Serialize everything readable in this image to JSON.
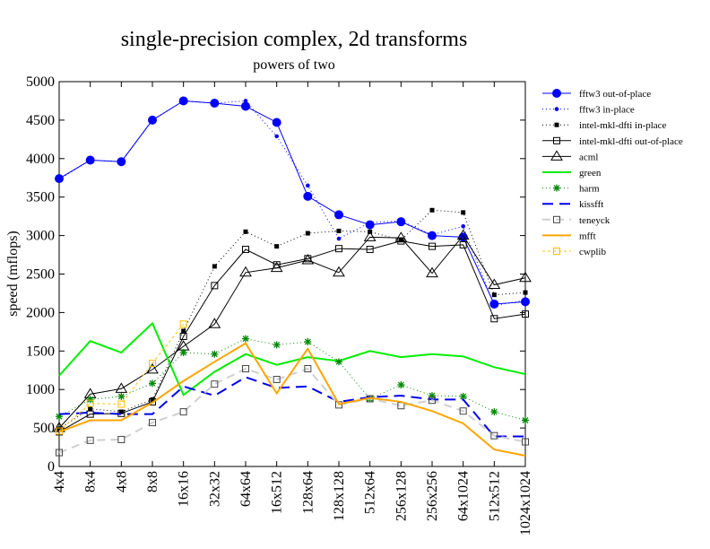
{
  "chart_data": {
    "type": "line",
    "title": "single-precision complex, 2d transforms",
    "subtitle": "powers of two",
    "xlabel": "",
    "ylabel": "speed (mflops)",
    "ylim": [
      0,
      5000
    ],
    "yticks": [
      0,
      500,
      1000,
      1500,
      2000,
      2500,
      3000,
      3500,
      4000,
      4500,
      5000
    ],
    "legend_position": "right",
    "grid": false,
    "categories": [
      "4x4",
      "8x4",
      "4x8",
      "8x8",
      "16x16",
      "32x32",
      "64x64",
      "16x512",
      "128x64",
      "128x128",
      "512x64",
      "256x128",
      "256x256",
      "64x1024",
      "512x512",
      "1024x1024"
    ],
    "series": [
      {
        "name": "fftw3 out-of-place",
        "color": "#0000ff",
        "dash": "",
        "width": 1,
        "marker": "circle-filled",
        "values": [
          3740,
          3980,
          3960,
          4500,
          4750,
          4720,
          4680,
          4470,
          3510,
          3270,
          3140,
          3180,
          3000,
          2980,
          2110,
          2140
        ]
      },
      {
        "name": "fftw3 in-place",
        "color": "#0000ff",
        "dash": "1 3",
        "width": 1,
        "marker": "dot",
        "values": [
          3730,
          3980,
          3960,
          4500,
          4750,
          4720,
          4750,
          4290,
          3650,
          2960,
          3170,
          3190,
          3010,
          3120,
          2090,
          2160
        ]
      },
      {
        "name": "intel-mkl-dfti in-place",
        "color": "#000000",
        "dash": "1 3",
        "width": 1,
        "marker": "square-filled",
        "values": [
          490,
          750,
          710,
          870,
          1760,
          2600,
          3050,
          2860,
          3030,
          3060,
          3050,
          2940,
          3330,
          3300,
          2230,
          2260
        ]
      },
      {
        "name": "intel-mkl-dfti out-of-place",
        "color": "#000000",
        "dash": "",
        "width": 1,
        "marker": "square-open",
        "values": [
          450,
          680,
          690,
          840,
          1690,
          2350,
          2820,
          2620,
          2700,
          2830,
          2820,
          2930,
          2860,
          2880,
          1920,
          1980
        ]
      },
      {
        "name": "acml",
        "color": "#000000",
        "dash": "",
        "width": 1,
        "marker": "triangle-open",
        "values": [
          500,
          940,
          1010,
          1260,
          1560,
          1850,
          2520,
          2580,
          2680,
          2520,
          2980,
          2970,
          2510,
          3000,
          2360,
          2450
        ]
      },
      {
        "name": "green",
        "color": "#00ee00",
        "dash": "",
        "width": 2,
        "marker": "none",
        "values": [
          1180,
          1630,
          1480,
          1860,
          930,
          1230,
          1460,
          1320,
          1420,
          1370,
          1500,
          1420,
          1460,
          1430,
          1290,
          1200
        ]
      },
      {
        "name": "harm",
        "color": "#008800",
        "dash": "1 3",
        "width": 1,
        "marker": "star",
        "values": [
          650,
          870,
          910,
          1080,
          1480,
          1460,
          1660,
          1580,
          1620,
          1360,
          880,
          1060,
          920,
          910,
          710,
          600
        ]
      },
      {
        "name": "kissfft",
        "color": "#0000ee",
        "dash": "12 7",
        "width": 2,
        "marker": "none",
        "values": [
          680,
          700,
          680,
          680,
          1040,
          920,
          1160,
          1020,
          1040,
          840,
          900,
          920,
          870,
          870,
          390,
          390
        ]
      },
      {
        "name": "teneyck",
        "color": "#d0d0d0",
        "dash": "9 6",
        "width": 2,
        "marker": "square-open-dark",
        "values": [
          180,
          340,
          350,
          570,
          710,
          1070,
          1270,
          1130,
          1270,
          800,
          880,
          790,
          860,
          720,
          400,
          320
        ]
      },
      {
        "name": "mfft",
        "color": "#ffa500",
        "dash": "",
        "width": 2,
        "marker": "none",
        "values": [
          450,
          600,
          600,
          830,
          1110,
          1360,
          1600,
          950,
          1530,
          810,
          890,
          840,
          720,
          560,
          220,
          140
        ]
      },
      {
        "name": "cwplib",
        "color": "#ffc000",
        "dash": "3 3",
        "width": 1,
        "marker": "square-open",
        "values": [
          460,
          820,
          810,
          1340,
          1850,
          null,
          null,
          null,
          null,
          null,
          null,
          null,
          null,
          null,
          null,
          null
        ]
      }
    ]
  }
}
